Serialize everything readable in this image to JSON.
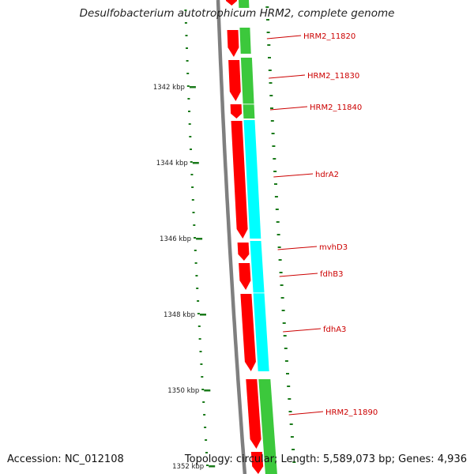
{
  "title": "Desulfobacterium autotrophicum HRM2, complete genome",
  "footer": {
    "accession": "Accession: NC_012108",
    "topology": "Topology: circular; Length: 5,589,073 bp; Genes: 4,936"
  },
  "colors": {
    "backbone": "#7f7f7f",
    "forward_strand": "#ff0000",
    "reverse_strand_green": "#3cc83c",
    "reverse_strand_cyan": "#00ffff",
    "ruler": "#1a7a1a",
    "label": "#cc0000",
    "tick_text": "#222222"
  },
  "ruler_ticks": [
    "1342 kbp",
    "1344 kbp",
    "1346 kbp",
    "1348 kbp",
    "1350 kbp",
    "1352 kbp"
  ],
  "gene_labels": [
    "HRM2_11820",
    "HRM2_11830",
    "HRM2_11840",
    "hdrA2",
    "mvhD3",
    "fdhB3",
    "fdhA3",
    "HRM2_11890"
  ]
}
